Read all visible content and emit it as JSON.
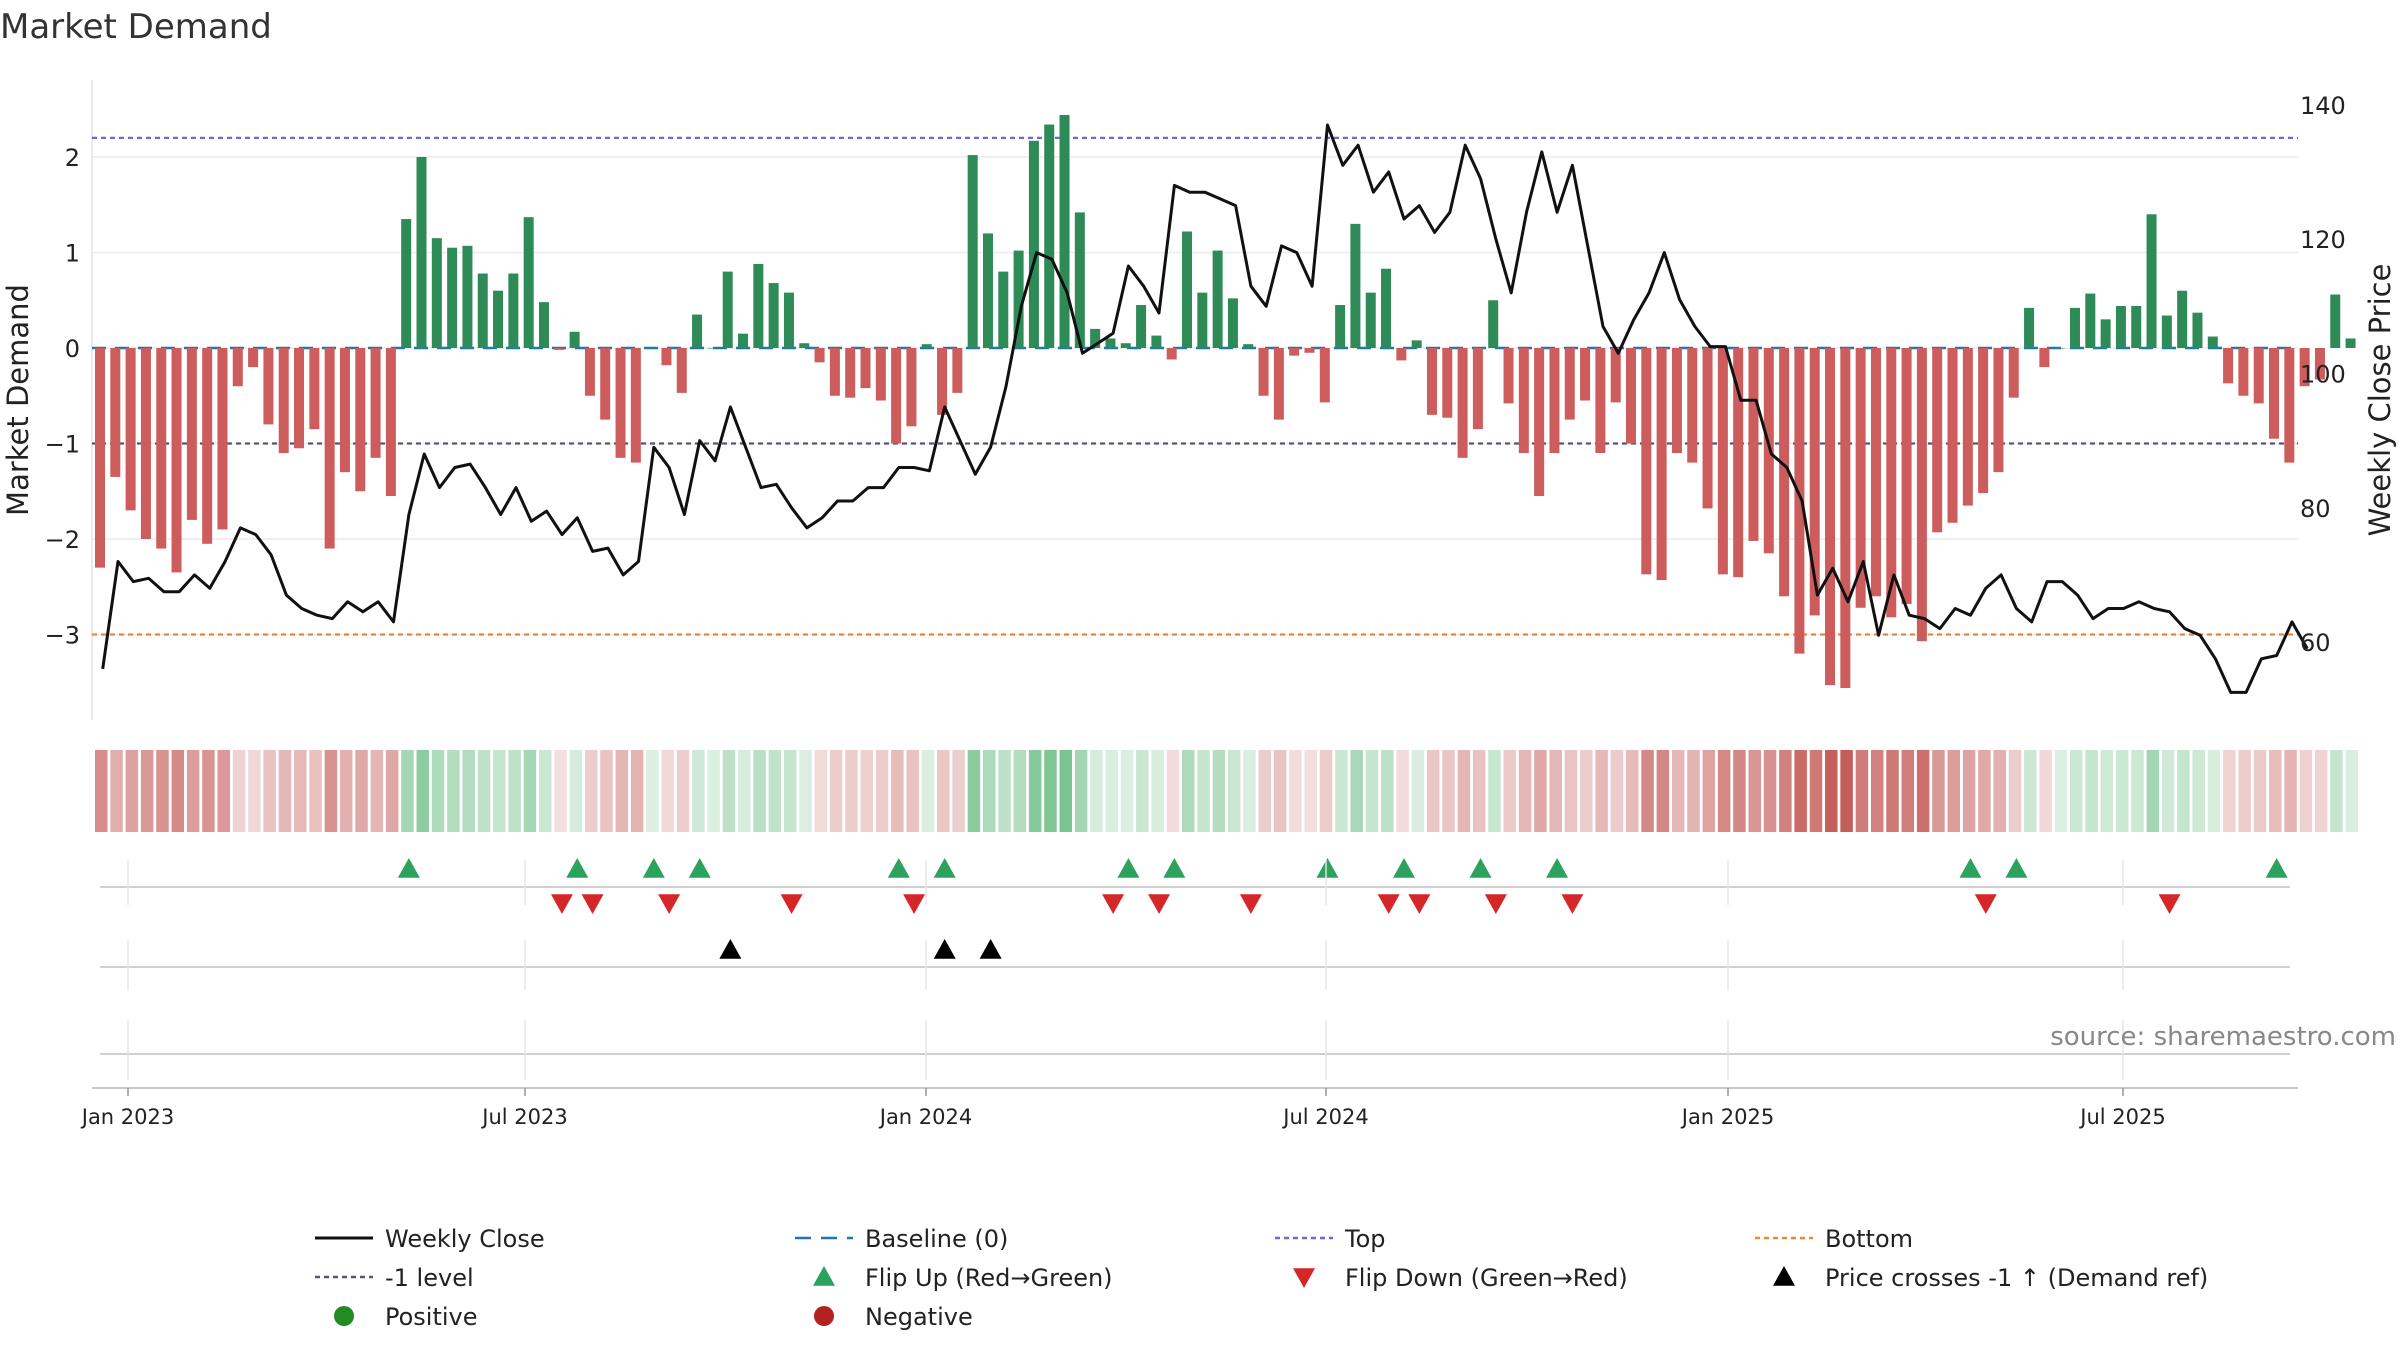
{
  "chart_data": {
    "type": "bar",
    "title": "Market Demand",
    "ylabel_left": "Market Demand",
    "ylabel_right": "Weekly Close Price",
    "ylim_left": [
      -3.75,
      2.85
    ],
    "yticks_left": [
      "2",
      "1",
      "0",
      "−1",
      "−2",
      "−3"
    ],
    "ylim_right": [
      47.5,
      144
    ],
    "yticks_right": [
      "140",
      "120",
      "100",
      "80",
      "60"
    ],
    "xticks": [
      "Jan 2023",
      "Jul 2023",
      "Jan 2024",
      "Jul 2024",
      "Jan 2025",
      "Jul 2025"
    ],
    "reference_lines": {
      "top": 2.2,
      "minus_one": -1.0,
      "bottom": -3.0,
      "baseline": 0
    },
    "demand": [
      -2.3,
      -1.35,
      -1.7,
      -2.0,
      -2.1,
      -2.35,
      -1.8,
      -2.05,
      -1.9,
      -0.4,
      -0.2,
      -0.8,
      -1.1,
      -1.05,
      -0.85,
      -2.1,
      -1.3,
      -1.5,
      -1.15,
      -1.55,
      1.35,
      2.0,
      1.15,
      1.05,
      1.07,
      0.78,
      0.6,
      0.78,
      1.37,
      0.48,
      -0.02,
      0.17,
      -0.5,
      -0.75,
      -1.15,
      -1.2,
      0.0,
      -0.18,
      -0.47,
      0.35,
      0.0,
      0.8,
      0.15,
      0.88,
      0.68,
      0.58,
      0.05,
      -0.15,
      -0.5,
      -0.52,
      -0.42,
      -0.55,
      -1.0,
      -0.82,
      0.04,
      -0.7,
      -0.47,
      2.02,
      1.2,
      0.8,
      1.02,
      2.17,
      2.34,
      2.44,
      1.42,
      0.2,
      0.1,
      0.05,
      0.45,
      0.13,
      -0.12,
      1.22,
      0.58,
      1.02,
      0.52,
      0.04,
      -0.5,
      -0.75,
      -0.08,
      -0.05,
      -0.57,
      0.45,
      1.3,
      0.58,
      0.83,
      -0.13,
      0.08,
      -0.7,
      -0.73,
      -1.15,
      -0.85,
      0.5,
      -0.58,
      -1.1,
      -1.55,
      -1.1,
      -0.75,
      -0.55,
      -1.1,
      -0.57,
      -1.0,
      -2.37,
      -2.43,
      -1.1,
      -1.2,
      -1.68,
      -2.37,
      -2.4,
      -2.02,
      -2.15,
      -2.6,
      -3.2,
      -2.8,
      -3.53,
      -3.56,
      -2.72,
      -2.6,
      -2.82,
      -2.68,
      -3.07,
      -1.93,
      -1.83,
      -1.65,
      -1.52,
      -1.3,
      -0.52,
      0.42,
      -0.2,
      0.0,
      0.42,
      0.57,
      0.3,
      0.44,
      0.44,
      1.4,
      0.34,
      0.6,
      0.37,
      0.12,
      -0.37,
      -0.5,
      -0.58,
      -0.95,
      -1.2,
      -0.4,
      -0.33,
      0.56,
      0.1
    ],
    "series": [
      {
        "name": "Weekly Close",
        "color": "#111111",
        "values": [
          56,
          72,
          69,
          69.5,
          67.5,
          67.5,
          70,
          68,
          72,
          77,
          76,
          73,
          67,
          65,
          64,
          63.5,
          66,
          64.5,
          66,
          63,
          79,
          88,
          83,
          86,
          86.5,
          83,
          79,
          83,
          78,
          79.5,
          76,
          78.5,
          73.5,
          74,
          70,
          72,
          89,
          86,
          79,
          90,
          87,
          95,
          89,
          83,
          83.5,
          80,
          77,
          78.5,
          81,
          81,
          83,
          83,
          86,
          86,
          85.5,
          95,
          90,
          85,
          89,
          98,
          110,
          118,
          117,
          112,
          103,
          104.5,
          106,
          116,
          113,
          109,
          128,
          127,
          127,
          126,
          125,
          113,
          110,
          119,
          118,
          113,
          137,
          131,
          134,
          127,
          130,
          123,
          125,
          121,
          124,
          134,
          129,
          120,
          112,
          124,
          133,
          124,
          131,
          119,
          107,
          103,
          108,
          112,
          118,
          111,
          107,
          104,
          104,
          96,
          96,
          88,
          86,
          81,
          67,
          71,
          66,
          72,
          61,
          70,
          64,
          63.5,
          62,
          65,
          64,
          68,
          70,
          65,
          63,
          69,
          69,
          67,
          63.5,
          65,
          65,
          66,
          65,
          64.5,
          62,
          61,
          57.5,
          52.5,
          52.5,
          57.5,
          58,
          63,
          59
        ]
      }
    ],
    "flip_up_weeks": [
      20,
      31,
      36,
      39,
      52,
      55,
      67,
      70,
      80,
      85,
      90,
      95,
      122,
      125,
      142
    ],
    "flip_down_weeks": [
      30,
      32,
      37,
      45,
      53,
      66,
      69,
      75,
      84,
      86,
      91,
      96,
      123,
      135
    ],
    "price_cross_weeks": [
      41,
      55,
      58
    ],
    "legend": [
      "Weekly Close",
      "Baseline (0)",
      "Top",
      "Bottom",
      "-1 level",
      "Flip Up (Red→Green)",
      "Flip Down (Green→Red)",
      "Price crosses -1 ↑ (Demand ref)",
      "Positive",
      "Negative"
    ],
    "colors": {
      "positive": "#2e8b57",
      "negative": "#cd5c5c",
      "line": "#111111",
      "baseline": "#1f77b4",
      "top": "#6a6adc",
      "minus_one": "#555577",
      "bottom": "#e8893a",
      "flip_up": "#2ca25f",
      "flip_down": "#d62728",
      "cross": "#000000",
      "positive_dot": "#228b22",
      "negative_dot": "#b22222"
    }
  },
  "source": "source: sharemaestro.com"
}
